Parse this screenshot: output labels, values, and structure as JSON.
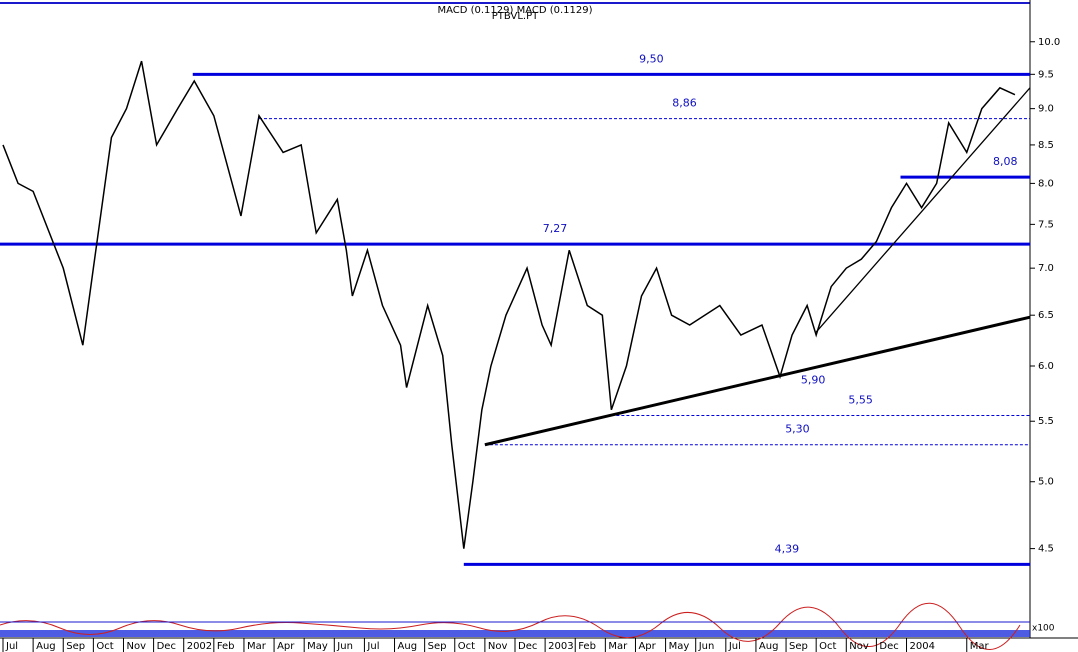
{
  "chart_data": {
    "type": "line",
    "title": "MACD (0.1129) MACD (0.1129)",
    "subtitle": "PTBVL.PT",
    "log_scale": true,
    "color": "#000000",
    "level_color": "#0000dd",
    "ylim": [
      4.15,
      10.68
    ],
    "yticks": [
      4.5,
      {
        "value": 5,
        "label": "5.0"
      },
      5.5,
      {
        "value": 6,
        "label": "6.0"
      },
      6.5,
      {
        "value": 7,
        "label": "7.0"
      },
      7.5,
      {
        "value": 8,
        "label": "8.0"
      },
      8.5,
      {
        "value": 9,
        "label": "9.0"
      },
      9.5,
      {
        "value": 10,
        "label": "10.0"
      }
    ],
    "xlim": [
      -0.1,
      34.1
    ],
    "xticks": [
      {
        "value": 0,
        "label": "Jul"
      },
      {
        "value": 1,
        "label": "Aug"
      },
      {
        "value": 2,
        "label": "Sep"
      },
      {
        "value": 3,
        "label": "Oct"
      },
      {
        "value": 4,
        "label": "Nov"
      },
      {
        "value": 5,
        "label": "Dec"
      },
      {
        "value": 6,
        "label": "2002"
      },
      {
        "value": 7,
        "label": "Feb"
      },
      {
        "value": 8,
        "label": "Mar"
      },
      {
        "value": 9,
        "label": "Apr"
      },
      {
        "value": 10,
        "label": "May"
      },
      {
        "value": 11,
        "label": "Jun"
      },
      {
        "value": 12,
        "label": "Jul"
      },
      {
        "value": 13,
        "label": "Aug"
      },
      {
        "value": 14,
        "label": "Sep"
      },
      {
        "value": 15,
        "label": "Oct"
      },
      {
        "value": 16,
        "label": "Nov"
      },
      {
        "value": 17,
        "label": "Dec"
      },
      {
        "value": 18,
        "label": "2003"
      },
      {
        "value": 19,
        "label": "Feb"
      },
      {
        "value": 20,
        "label": "Mar"
      },
      {
        "value": 21,
        "label": "Apr"
      },
      {
        "value": 22,
        "label": "May"
      },
      {
        "value": 23,
        "label": "Jun"
      },
      {
        "value": 24,
        "label": "Jul"
      },
      {
        "value": 25,
        "label": "Aug"
      },
      {
        "value": 26,
        "label": "Sep"
      },
      {
        "value": 27,
        "label": "Oct"
      },
      {
        "value": 28,
        "label": "Nov"
      },
      {
        "value": 29,
        "label": "Dec"
      },
      {
        "value": 30,
        "label": "2004"
      },
      {
        "value": 32,
        "label": "Mar"
      }
    ],
    "x": [
      0,
      0.5,
      1,
      2,
      2.65,
      3,
      3.6,
      4.1,
      4.6,
      5.1,
      5.8,
      6.35,
      7,
      7.9,
      8.5,
      9.3,
      9.9,
      10.4,
      11.1,
      11.4,
      11.6,
      12.1,
      12.6,
      13.2,
      13.4,
      14.1,
      14.6,
      14.9,
      15.3,
      15.6,
      15.9,
      16.2,
      16.7,
      17.4,
      17.9,
      18.2,
      18.8,
      19.4,
      19.9,
      20.2,
      20.7,
      21.2,
      21.7,
      22.2,
      22.8,
      23.8,
      24.5,
      25.2,
      25.8,
      26.2,
      26.7,
      27,
      27.5,
      28,
      28.5,
      29,
      29.5,
      30,
      30.5,
      31,
      31.4,
      32,
      32.5,
      33.1,
      33.6
    ],
    "values": [
      8.5,
      8.0,
      7.9,
      7.0,
      6.2,
      7.0,
      8.6,
      9.0,
      9.7,
      8.5,
      9.0,
      9.4,
      8.9,
      7.6,
      8.9,
      8.4,
      8.5,
      7.4,
      7.8,
      7.2,
      6.7,
      7.2,
      6.6,
      6.2,
      5.8,
      6.6,
      6.1,
      5.3,
      4.5,
      5.0,
      5.6,
      6.0,
      6.5,
      7.0,
      6.4,
      6.2,
      7.2,
      6.6,
      6.5,
      5.6,
      6.0,
      6.7,
      7.0,
      6.5,
      6.4,
      6.6,
      6.3,
      6.4,
      5.9,
      6.3,
      6.6,
      6.3,
      6.8,
      7.0,
      7.1,
      7.3,
      7.7,
      8.0,
      7.7,
      8.0,
      8.8,
      8.4,
      9.0,
      9.3,
      9.2
    ],
    "levels": [
      {
        "value": 9.5,
        "label": "9,50",
        "from": 6.3,
        "style": "solid"
      },
      {
        "value": 8.86,
        "label": "8,86",
        "from": 8.5,
        "style": "dashed"
      },
      {
        "value": 8.08,
        "label": "8,08",
        "from": 29.8,
        "style": "solid"
      },
      {
        "value": 7.27,
        "label": "7,27",
        "from": -0.1,
        "style": "solid"
      },
      {
        "value": 5.55,
        "label": "5,55",
        "from": 20.2,
        "style": "dashed"
      },
      {
        "value": 5.3,
        "label": "5,30",
        "from": 16,
        "style": "dashed"
      },
      {
        "value": 4.39,
        "label": "4,39",
        "from": 15.3,
        "style": "solid"
      }
    ],
    "annotations": [
      {
        "value": 5.9,
        "label": "5,90",
        "x": 26.9
      }
    ],
    "trendlines": [
      {
        "x": [
          16,
          34.1
        ],
        "values": [
          5.3,
          6.48
        ],
        "width": 3
      },
      {
        "x": [
          27,
          34.1
        ],
        "values": [
          6.33,
          9.3
        ],
        "width": 1.3
      }
    ]
  }
}
